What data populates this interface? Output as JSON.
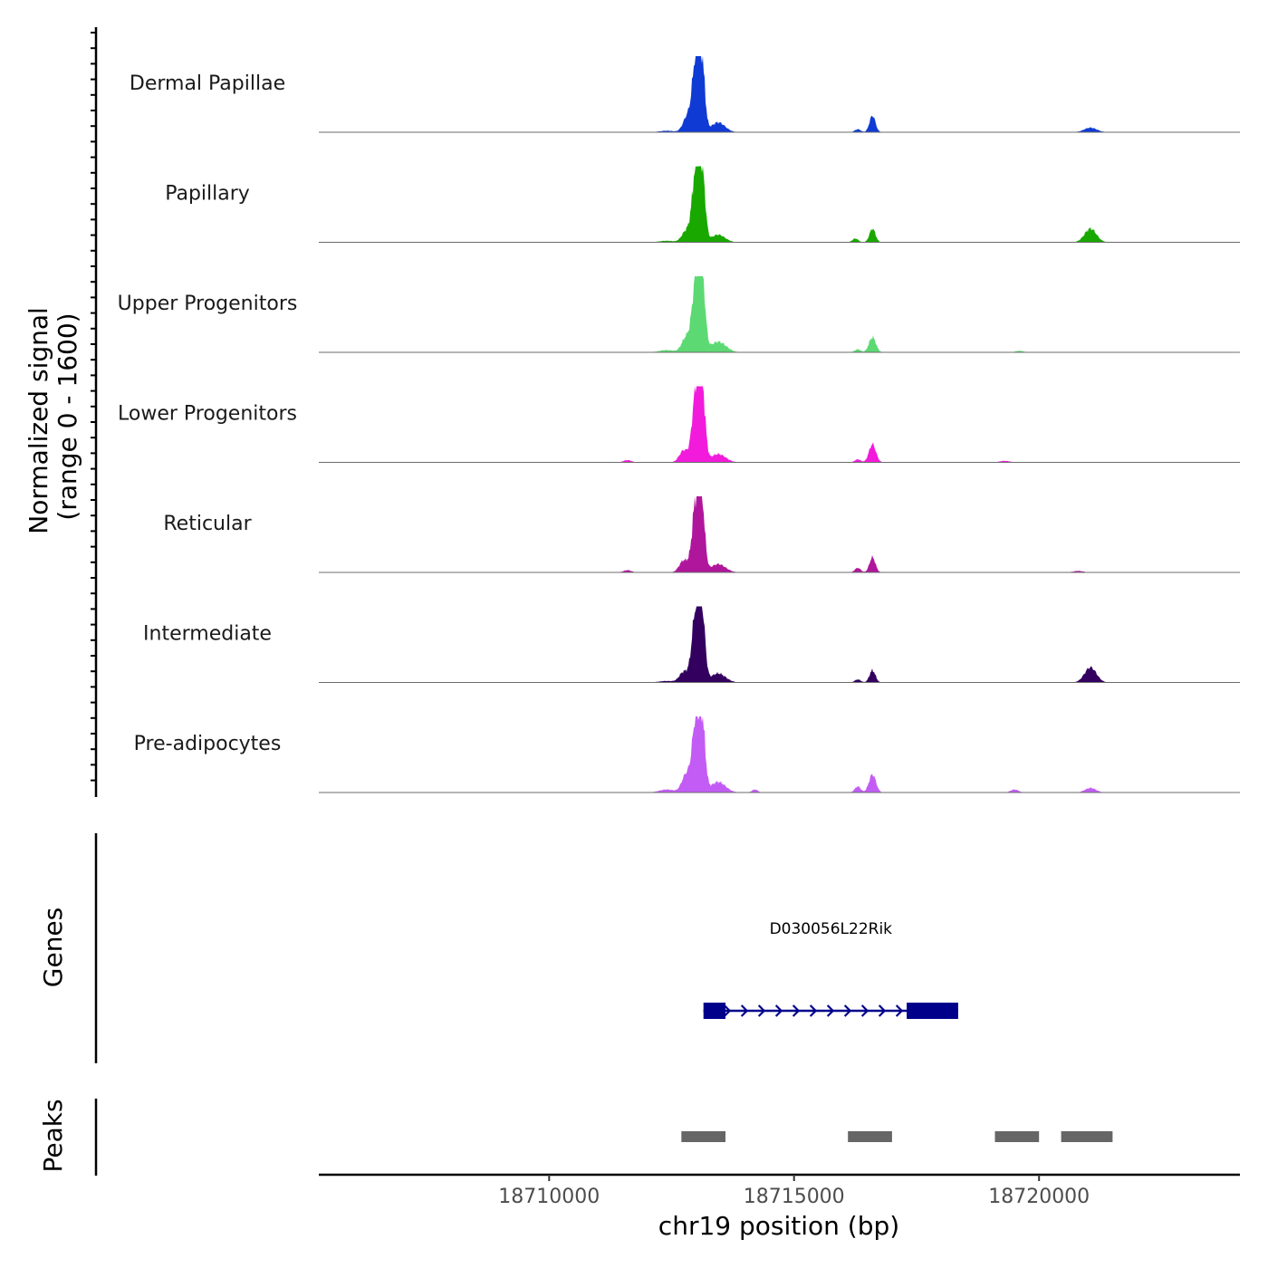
{
  "chart_data": {
    "type": "area",
    "chromosome": "chr19",
    "xlabel": "chr19 position (bp)",
    "ylabel": "Normalized signal\n(range 0 - 1600)",
    "ylabel_lines": [
      "Normalized signal",
      "(range 0 - 1600)"
    ],
    "y_range": [
      0,
      1600
    ],
    "xlim": [
      18705300,
      18724100
    ],
    "x_ticks": [
      18710000,
      18715000,
      18720000
    ],
    "x_tick_labels": [
      "18710000",
      "18715000",
      "18720000"
    ],
    "tracks": [
      {
        "name": "Dermal Papillae",
        "color": "#0f3bd4",
        "peaks": [
          {
            "pos": 18713000,
            "height": 0.98,
            "width": 70
          },
          {
            "pos": 18713120,
            "height": 0.85,
            "width": 60
          },
          {
            "pos": 18712830,
            "height": 0.22,
            "width": 90
          },
          {
            "pos": 18713450,
            "height": 0.13,
            "width": 140
          },
          {
            "pos": 18716600,
            "height": 0.22,
            "width": 60
          },
          {
            "pos": 18716300,
            "height": 0.04,
            "width": 60
          },
          {
            "pos": 18721050,
            "height": 0.06,
            "width": 130
          },
          {
            "pos": 18712400,
            "height": 0.02,
            "width": 150
          }
        ]
      },
      {
        "name": "Papillary",
        "color": "#18a800",
        "peaks": [
          {
            "pos": 18713000,
            "height": 0.98,
            "width": 75
          },
          {
            "pos": 18713130,
            "height": 0.8,
            "width": 60
          },
          {
            "pos": 18712800,
            "height": 0.15,
            "width": 90
          },
          {
            "pos": 18713450,
            "height": 0.1,
            "width": 140
          },
          {
            "pos": 18716600,
            "height": 0.18,
            "width": 60
          },
          {
            "pos": 18716250,
            "height": 0.05,
            "width": 60
          },
          {
            "pos": 18721050,
            "height": 0.18,
            "width": 120
          },
          {
            "pos": 18712400,
            "height": 0.02,
            "width": 150
          }
        ]
      },
      {
        "name": "Upper Progenitors",
        "color": "#5cd973",
        "peaks": [
          {
            "pos": 18713000,
            "height": 0.98,
            "width": 75
          },
          {
            "pos": 18713130,
            "height": 0.85,
            "width": 60
          },
          {
            "pos": 18712800,
            "height": 0.2,
            "width": 90
          },
          {
            "pos": 18713450,
            "height": 0.14,
            "width": 160
          },
          {
            "pos": 18716600,
            "height": 0.2,
            "width": 70
          },
          {
            "pos": 18716300,
            "height": 0.04,
            "width": 60
          },
          {
            "pos": 18712400,
            "height": 0.03,
            "width": 150
          },
          {
            "pos": 18719600,
            "height": 0.02,
            "width": 80
          }
        ]
      },
      {
        "name": "Lower Progenitors",
        "color": "#f21bdb",
        "peaks": [
          {
            "pos": 18713000,
            "height": 0.98,
            "width": 75
          },
          {
            "pos": 18713130,
            "height": 0.85,
            "width": 60
          },
          {
            "pos": 18712750,
            "height": 0.16,
            "width": 90
          },
          {
            "pos": 18713450,
            "height": 0.11,
            "width": 150
          },
          {
            "pos": 18716600,
            "height": 0.24,
            "width": 70
          },
          {
            "pos": 18716300,
            "height": 0.04,
            "width": 60
          },
          {
            "pos": 18711600,
            "height": 0.03,
            "width": 80
          },
          {
            "pos": 18719300,
            "height": 0.02,
            "width": 100
          }
        ]
      },
      {
        "name": "Reticular",
        "color": "#b0169c",
        "peaks": [
          {
            "pos": 18713000,
            "height": 0.96,
            "width": 75
          },
          {
            "pos": 18713120,
            "height": 0.8,
            "width": 60
          },
          {
            "pos": 18712750,
            "height": 0.16,
            "width": 90
          },
          {
            "pos": 18713450,
            "height": 0.11,
            "width": 150
          },
          {
            "pos": 18716600,
            "height": 0.2,
            "width": 60
          },
          {
            "pos": 18716300,
            "height": 0.06,
            "width": 60
          },
          {
            "pos": 18711600,
            "height": 0.03,
            "width": 80
          },
          {
            "pos": 18720800,
            "height": 0.02,
            "width": 100
          }
        ]
      },
      {
        "name": "Intermediate",
        "color": "#33005f",
        "peaks": [
          {
            "pos": 18713000,
            "height": 0.98,
            "width": 80
          },
          {
            "pos": 18713130,
            "height": 0.75,
            "width": 60
          },
          {
            "pos": 18712750,
            "height": 0.14,
            "width": 90
          },
          {
            "pos": 18713450,
            "height": 0.12,
            "width": 150
          },
          {
            "pos": 18716600,
            "height": 0.16,
            "width": 60
          },
          {
            "pos": 18716300,
            "height": 0.04,
            "width": 60
          },
          {
            "pos": 18721050,
            "height": 0.2,
            "width": 120
          },
          {
            "pos": 18712400,
            "height": 0.02,
            "width": 150
          }
        ]
      },
      {
        "name": "Pre-adipocytes",
        "color": "#c25cf5",
        "peaks": [
          {
            "pos": 18713000,
            "height": 0.98,
            "width": 75
          },
          {
            "pos": 18713130,
            "height": 0.8,
            "width": 60
          },
          {
            "pos": 18712800,
            "height": 0.24,
            "width": 90
          },
          {
            "pos": 18713450,
            "height": 0.14,
            "width": 150
          },
          {
            "pos": 18714200,
            "height": 0.04,
            "width": 60
          },
          {
            "pos": 18716600,
            "height": 0.24,
            "width": 70
          },
          {
            "pos": 18716300,
            "height": 0.08,
            "width": 60
          },
          {
            "pos": 18719500,
            "height": 0.04,
            "width": 80
          },
          {
            "pos": 18721050,
            "height": 0.06,
            "width": 110
          },
          {
            "pos": 18712400,
            "height": 0.04,
            "width": 150
          }
        ]
      }
    ],
    "genes_panel_label": "Genes",
    "gene": {
      "name": "D030056L22Rik",
      "color": "#00008b",
      "strand": "+",
      "start": 18713150,
      "end": 18718350,
      "exons": [
        [
          18713150,
          18713600
        ],
        [
          18717300,
          18718350
        ]
      ]
    },
    "peaks_panel_label": "Peaks",
    "peak_color": "#666666",
    "peak_regions": [
      [
        18712700,
        18713600
      ],
      [
        18716100,
        18717000
      ],
      [
        18719100,
        18720000
      ],
      [
        18720450,
        18721500
      ]
    ]
  }
}
